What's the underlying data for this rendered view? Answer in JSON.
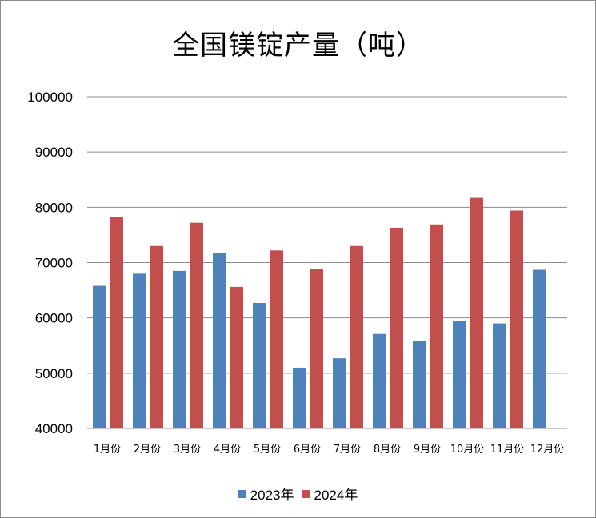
{
  "chart_data": {
    "type": "bar",
    "title": "全国镁锭产量（吨）",
    "categories": [
      "1月份",
      "2月份",
      "3月份",
      "4月份",
      "5月份",
      "6月份",
      "7月份",
      "8月份",
      "9月份",
      "10月份",
      "11月份",
      "12月份"
    ],
    "series": [
      {
        "name": "2023年",
        "color": "#4f81bd",
        "values": [
          65800,
          68000,
          68500,
          71700,
          62700,
          51000,
          52700,
          57100,
          55800,
          59400,
          59000,
          68700
        ]
      },
      {
        "name": "2024年",
        "color": "#c0504d",
        "values": [
          78200,
          73000,
          77200,
          65600,
          72200,
          68800,
          73000,
          76300,
          76900,
          81700,
          79400,
          null
        ]
      }
    ],
    "ylim": [
      40000,
      100000
    ],
    "yticks": [
      "40000",
      "50000",
      "60000",
      "70000",
      "80000",
      "90000",
      "100000"
    ],
    "grid": true,
    "legend": "bottom"
  }
}
